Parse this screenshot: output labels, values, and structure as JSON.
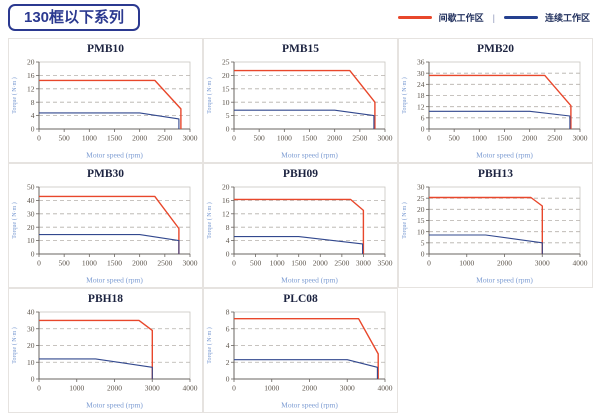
{
  "header": {
    "series_title": "130框以下系列"
  },
  "legend": {
    "items": [
      {
        "label": "间歇工作区",
        "color": "#e8472b"
      },
      {
        "label": "连续工作区",
        "color": "#25408f"
      }
    ],
    "separator": "|"
  },
  "colors": {
    "intermittent": "#e8472b",
    "continuous": "#32488e",
    "grid": "#b5b0ab",
    "spine_dark": "#6a6560",
    "spine_light": "#c9c5c0"
  },
  "chart_data": [
    {
      "type": "line",
      "title": "PMB10",
      "xlabel": "Motor speed (rpm)",
      "ylabel": "Torque ( N·m )",
      "xlim": [
        0,
        3000
      ],
      "xstep": 500,
      "ylim": [
        0,
        20
      ],
      "ystep": 4,
      "grid": "dashed-horizontal",
      "legend_position": "none",
      "series": [
        {
          "name": "间歇工作区",
          "color_key": "intermittent",
          "points": [
            [
              0,
              14.5
            ],
            [
              2300,
              14.5
            ],
            [
              2820,
              6
            ],
            [
              2820,
              0
            ]
          ]
        },
        {
          "name": "连续工作区",
          "color_key": "continuous",
          "points": [
            [
              0,
              4.8
            ],
            [
              2000,
              4.8
            ],
            [
              2780,
              3
            ],
            [
              2780,
              0
            ]
          ]
        }
      ]
    },
    {
      "type": "line",
      "title": "PMB15",
      "xlabel": "Motor speed (rpm)",
      "ylabel": "Torque ( N·m )",
      "xlim": [
        0,
        3000
      ],
      "xstep": 500,
      "ylim": [
        0,
        25
      ],
      "ystep": 5,
      "grid": "dashed-horizontal",
      "legend_position": "none",
      "series": [
        {
          "name": "间歇工作区",
          "color_key": "intermittent",
          "points": [
            [
              0,
              21.8
            ],
            [
              2300,
              21.8
            ],
            [
              2800,
              10
            ],
            [
              2800,
              0
            ]
          ]
        },
        {
          "name": "连续工作区",
          "color_key": "continuous",
          "points": [
            [
              0,
              7
            ],
            [
              2000,
              7
            ],
            [
              2780,
              5
            ],
            [
              2780,
              0
            ]
          ]
        }
      ]
    },
    {
      "type": "line",
      "title": "PMB20",
      "xlabel": "Motor speed (rpm)",
      "ylabel": "Torque ( N·m )",
      "xlim": [
        0,
        3000
      ],
      "xstep": 500,
      "ylim": [
        0,
        36
      ],
      "ystep": 6,
      "grid": "dashed-horizontal",
      "legend_position": "none",
      "series": [
        {
          "name": "间歇工作区",
          "color_key": "intermittent",
          "points": [
            [
              0,
              28.8
            ],
            [
              2300,
              28.8
            ],
            [
              2820,
              12.5
            ],
            [
              2820,
              0
            ]
          ]
        },
        {
          "name": "连续工作区",
          "color_key": "continuous",
          "points": [
            [
              0,
              9.5
            ],
            [
              2000,
              9.5
            ],
            [
              2800,
              7
            ],
            [
              2800,
              0
            ]
          ]
        }
      ]
    },
    {
      "type": "line",
      "title": "PMB30",
      "xlabel": "Motor speed (rpm)",
      "ylabel": "Torque ( N·m )",
      "xlim": [
        0,
        3000
      ],
      "xstep": 500,
      "ylim": [
        0,
        50
      ],
      "ystep": 10,
      "grid": "dashed-horizontal",
      "legend_position": "none",
      "series": [
        {
          "name": "间歇工作区",
          "color_key": "intermittent",
          "points": [
            [
              0,
              43
            ],
            [
              2300,
              43
            ],
            [
              2780,
              19
            ],
            [
              2780,
              0
            ]
          ]
        },
        {
          "name": "连续工作区",
          "color_key": "continuous",
          "points": [
            [
              0,
              14.5
            ],
            [
              2000,
              14.5
            ],
            [
              2780,
              10
            ],
            [
              2780,
              0
            ]
          ]
        }
      ]
    },
    {
      "type": "line",
      "title": "PBH09",
      "xlabel": "Motor speed (rpm)",
      "ylabel": "Torque ( N·m )",
      "xlim": [
        0,
        3500
      ],
      "xstep": 500,
      "ylim": [
        0,
        20
      ],
      "ystep": 4,
      "grid": "dashed-horizontal",
      "legend_position": "none",
      "series": [
        {
          "name": "间歇工作区",
          "color_key": "intermittent",
          "points": [
            [
              0,
              16.3
            ],
            [
              2700,
              16.3
            ],
            [
              3000,
              13
            ],
            [
              3000,
              0
            ]
          ]
        },
        {
          "name": "连续工作区",
          "color_key": "continuous",
          "points": [
            [
              0,
              5.2
            ],
            [
              1500,
              5.2
            ],
            [
              2980,
              3
            ],
            [
              2980,
              0
            ]
          ]
        }
      ]
    },
    {
      "type": "line",
      "title": "PBH13",
      "xlabel": "Motor speed (rpm)",
      "ylabel": "Torque ( N·m )",
      "xlim": [
        0,
        4000
      ],
      "xstep": 1000,
      "ylim": [
        0,
        30
      ],
      "ystep": 5,
      "grid": "dashed-horizontal",
      "legend_position": "none",
      "series": [
        {
          "name": "间歇工作区",
          "color_key": "intermittent",
          "points": [
            [
              0,
              25.3
            ],
            [
              2700,
              25.3
            ],
            [
              3000,
              21.5
            ],
            [
              3000,
              0
            ]
          ]
        },
        {
          "name": "连续工作区",
          "color_key": "continuous",
          "points": [
            [
              0,
              8.5
            ],
            [
              1500,
              8.5
            ],
            [
              3000,
              5
            ],
            [
              3000,
              0
            ]
          ]
        }
      ]
    },
    {
      "type": "line",
      "title": "PBH18",
      "xlabel": "Motor speed (rpm)",
      "ylabel": "Torque ( N·m )",
      "xlim": [
        0,
        4000
      ],
      "xstep": 1000,
      "ylim": [
        0,
        40
      ],
      "ystep": 10,
      "grid": "dashed-horizontal",
      "legend_position": "none",
      "series": [
        {
          "name": "间歇工作区",
          "color_key": "intermittent",
          "points": [
            [
              0,
              35
            ],
            [
              2650,
              35
            ],
            [
              3000,
              29
            ],
            [
              3000,
              0
            ]
          ]
        },
        {
          "name": "连续工作区",
          "color_key": "continuous",
          "points": [
            [
              0,
              12
            ],
            [
              1500,
              12
            ],
            [
              3000,
              7
            ],
            [
              3000,
              0
            ]
          ]
        }
      ]
    },
    {
      "type": "line",
      "title": "PLC08",
      "xlabel": "Motor speed (rpm)",
      "ylabel": "Torque ( N·m )",
      "xlim": [
        0,
        4000
      ],
      "xstep": 1000,
      "ylim": [
        0,
        8
      ],
      "ystep": 2,
      "grid": "dashed-horizontal",
      "legend_position": "none",
      "series": [
        {
          "name": "间歇工作区",
          "color_key": "intermittent",
          "points": [
            [
              0,
              7.2
            ],
            [
              3300,
              7.2
            ],
            [
              3820,
              3
            ],
            [
              3820,
              0
            ]
          ]
        },
        {
          "name": "连续工作区",
          "color_key": "continuous",
          "points": [
            [
              0,
              2.3
            ],
            [
              3000,
              2.3
            ],
            [
              3800,
              1.4
            ],
            [
              3800,
              0
            ]
          ]
        }
      ]
    }
  ]
}
